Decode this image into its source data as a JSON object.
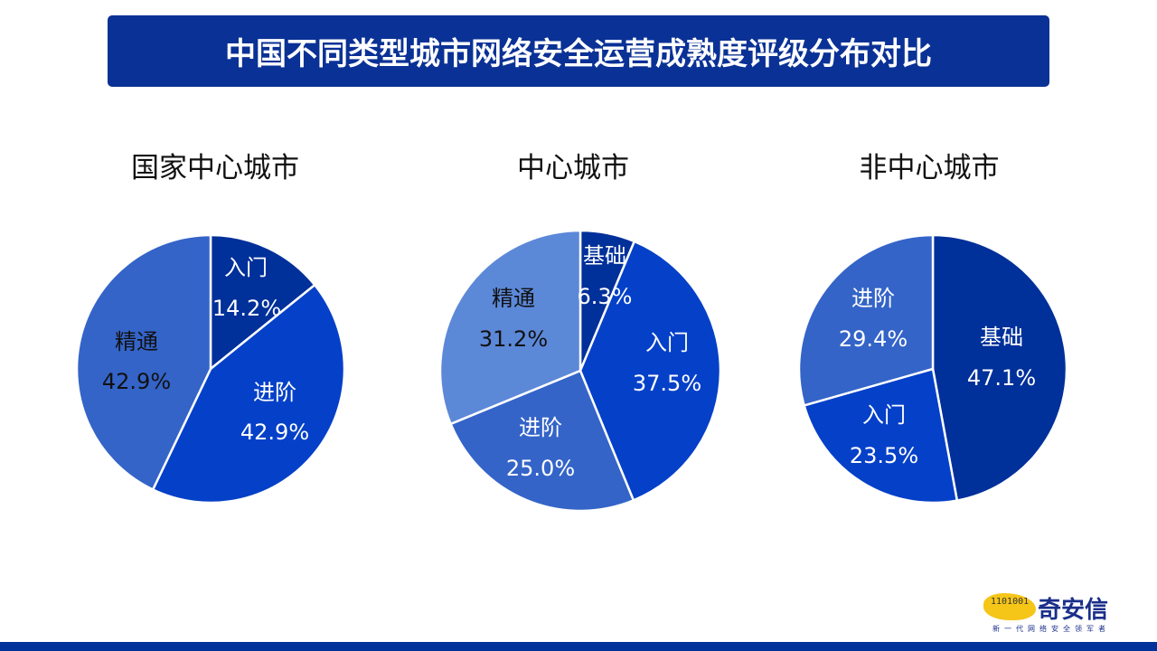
{
  "header": {
    "title": "中国不同类型城市网络安全运营成熟度评级分布对比"
  },
  "colors": {
    "title_bg": "#0A3195",
    "dark": "#00309A",
    "medium": "#0540C8",
    "light": "#3464C8",
    "lighter": "#5C88D8",
    "bottom_bar": "#00309A"
  },
  "logo": {
    "brand": "奇安信",
    "slogan": "新一代网络安全领军者",
    "mascot_text": "1101001"
  },
  "chart_data": [
    {
      "type": "pie",
      "title": "国家中心城市",
      "categories": [
        "入门",
        "进阶",
        "精通"
      ],
      "values": [
        14.2,
        42.9,
        42.9
      ],
      "labels": [
        "14.2%",
        "42.9%",
        "42.9%"
      ]
    },
    {
      "type": "pie",
      "title": "中心城市",
      "categories": [
        "基础",
        "入门",
        "进阶",
        "精通"
      ],
      "values": [
        6.3,
        37.5,
        25.0,
        31.2
      ],
      "labels": [
        "6.3%",
        "37.5%",
        "25.0%",
        "31.2%"
      ]
    },
    {
      "type": "pie",
      "title": "非中心城市",
      "categories": [
        "基础",
        "入门",
        "进阶"
      ],
      "values": [
        47.1,
        23.5,
        29.4
      ],
      "labels": [
        "47.1%",
        "23.5%",
        "29.4%"
      ]
    }
  ]
}
